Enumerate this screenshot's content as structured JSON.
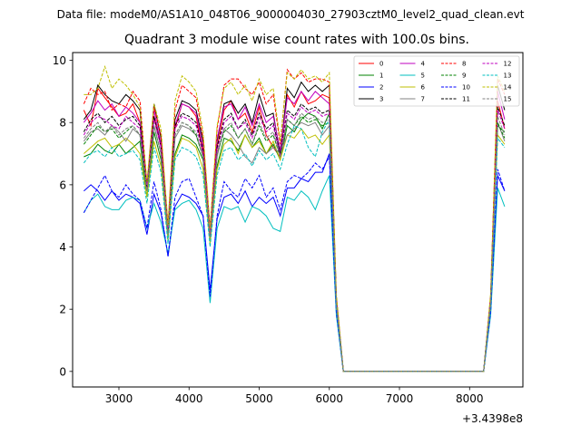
{
  "figure": {
    "suptitle": "Data file: modeM0/AS1A10_048T06_9000004030_27903cztM0_level2_quad_clean.evt",
    "offset_text": "+3.4398e8"
  },
  "chart_data": {
    "type": "line",
    "title": "Quadrant 3 module wise count rates with 100.0s bins.",
    "xlabel": "",
    "ylabel": "",
    "x_offset": 343980000,
    "xlim": [
      2340,
      8760
    ],
    "ylim": [
      -0.5,
      10.25
    ],
    "xticks": [
      3000,
      4000,
      5000,
      6000,
      7000,
      8000
    ],
    "yticks": [
      0,
      2,
      4,
      6,
      8,
      10
    ],
    "x": [
      2500,
      2600,
      2700,
      2800,
      2900,
      3000,
      3100,
      3200,
      3300,
      3400,
      3500,
      3600,
      3700,
      3800,
      3900,
      4000,
      4100,
      4200,
      4300,
      4400,
      4500,
      4600,
      4700,
      4800,
      4900,
      5000,
      5100,
      5200,
      5300,
      5400,
      5500,
      5600,
      5700,
      5800,
      5900,
      6000,
      6100,
      6200,
      6300,
      6400,
      6500,
      6600,
      6700,
      6800,
      6900,
      7000,
      7100,
      7200,
      7300,
      7400,
      7500,
      7600,
      7700,
      7800,
      7900,
      8000,
      8100,
      8200,
      8300,
      8400,
      8500
    ],
    "legend_position": "top-right",
    "series": [
      {
        "name": "0",
        "color": "#ff0000",
        "dash": "solid",
        "values": [
          8.4,
          7.9,
          9.1,
          8.8,
          8.5,
          8.2,
          8.3,
          8.6,
          8.0,
          5.9,
          8.2,
          7.3,
          4.6,
          7.8,
          8.6,
          8.5,
          8.2,
          7.0,
          4.5,
          7.2,
          8.4,
          8.7,
          8.1,
          8.3,
          7.7,
          8.5,
          7.6,
          7.2,
          6.9,
          8.9,
          8.5,
          9.0,
          8.6,
          8.7,
          8.9,
          8.8,
          2.3,
          0.0,
          0.0,
          0.0,
          0.0,
          0.0,
          0.0,
          0.0,
          0.0,
          0.0,
          0.0,
          0.0,
          0.0,
          0.0,
          0.0,
          0.0,
          0.0,
          0.0,
          0.0,
          0.0,
          0.0,
          0.0,
          2.3,
          8.7,
          7.8
        ]
      },
      {
        "name": "1",
        "color": "#008000",
        "dash": "solid",
        "values": [
          6.9,
          7.0,
          7.3,
          7.1,
          7.0,
          7.3,
          7.0,
          7.2,
          7.4,
          5.6,
          7.7,
          6.8,
          4.3,
          7.0,
          7.6,
          7.5,
          7.3,
          6.8,
          4.2,
          6.6,
          7.5,
          7.4,
          7.1,
          7.6,
          7.2,
          7.5,
          7.0,
          7.3,
          6.8,
          7.9,
          7.7,
          8.1,
          8.3,
          8.2,
          7.8,
          8.3,
          2.1,
          0.0,
          0.0,
          0.0,
          0.0,
          0.0,
          0.0,
          0.0,
          0.0,
          0.0,
          0.0,
          0.0,
          0.0,
          0.0,
          0.0,
          0.0,
          0.0,
          0.0,
          0.0,
          0.0,
          0.0,
          0.0,
          2.1,
          7.9,
          7.7
        ]
      },
      {
        "name": "2",
        "color": "#0000ff",
        "dash": "solid",
        "values": [
          5.8,
          6.0,
          5.8,
          5.5,
          5.8,
          5.5,
          5.7,
          5.6,
          5.4,
          4.4,
          5.7,
          5.1,
          3.7,
          5.3,
          5.7,
          5.6,
          5.4,
          5.0,
          2.6,
          4.9,
          5.6,
          5.7,
          5.4,
          5.8,
          5.3,
          5.6,
          5.4,
          5.6,
          5.0,
          5.9,
          5.9,
          6.2,
          6.1,
          6.4,
          6.4,
          7.0,
          1.9,
          0.0,
          0.0,
          0.0,
          0.0,
          0.0,
          0.0,
          0.0,
          0.0,
          0.0,
          0.0,
          0.0,
          0.0,
          0.0,
          0.0,
          0.0,
          0.0,
          0.0,
          0.0,
          0.0,
          0.0,
          0.0,
          1.9,
          6.3,
          5.8
        ]
      },
      {
        "name": "3",
        "color": "#000000",
        "dash": "solid",
        "values": [
          8.1,
          8.4,
          9.2,
          8.9,
          8.7,
          8.6,
          8.9,
          8.7,
          8.4,
          5.9,
          8.6,
          7.5,
          4.5,
          8.1,
          8.7,
          8.6,
          8.4,
          7.4,
          4.5,
          7.4,
          8.6,
          8.7,
          8.3,
          8.6,
          8.0,
          8.9,
          8.2,
          8.3,
          7.0,
          9.1,
          8.8,
          9.3,
          9.0,
          9.2,
          9.0,
          9.2,
          2.4,
          0.0,
          0.0,
          0.0,
          0.0,
          0.0,
          0.0,
          0.0,
          0.0,
          0.0,
          0.0,
          0.0,
          0.0,
          0.0,
          0.0,
          0.0,
          0.0,
          0.0,
          0.0,
          0.0,
          0.0,
          0.0,
          2.4,
          9.2,
          8.4
        ]
      },
      {
        "name": "4",
        "color": "#bf00bf",
        "dash": "solid",
        "values": [
          8.0,
          8.3,
          8.7,
          8.4,
          8.6,
          8.2,
          8.5,
          8.3,
          8.0,
          6.0,
          8.4,
          7.3,
          4.5,
          7.9,
          8.6,
          8.5,
          8.3,
          7.2,
          4.4,
          7.5,
          8.5,
          8.6,
          8.1,
          8.5,
          7.9,
          8.6,
          8.0,
          8.2,
          7.1,
          8.8,
          8.6,
          9.0,
          8.7,
          9.0,
          8.8,
          8.6,
          2.3,
          0.0,
          0.0,
          0.0,
          0.0,
          0.0,
          0.0,
          0.0,
          0.0,
          0.0,
          0.0,
          0.0,
          0.0,
          0.0,
          0.0,
          0.0,
          0.0,
          0.0,
          0.0,
          0.0,
          0.0,
          0.0,
          2.3,
          9.0,
          8.1
        ]
      },
      {
        "name": "5",
        "color": "#00bfbf",
        "dash": "solid",
        "values": [
          5.1,
          5.5,
          5.7,
          5.3,
          5.2,
          5.2,
          5.5,
          5.6,
          5.5,
          4.6,
          5.4,
          4.8,
          3.8,
          5.2,
          5.4,
          5.5,
          5.2,
          4.6,
          2.2,
          4.6,
          5.3,
          5.2,
          5.3,
          4.8,
          5.3,
          5.2,
          5.0,
          4.6,
          4.5,
          5.6,
          5.5,
          5.8,
          5.6,
          5.2,
          5.8,
          6.3,
          1.8,
          0.0,
          0.0,
          0.0,
          0.0,
          0.0,
          0.0,
          0.0,
          0.0,
          0.0,
          0.0,
          0.0,
          0.0,
          0.0,
          0.0,
          0.0,
          0.0,
          0.0,
          0.0,
          0.0,
          0.0,
          0.0,
          1.8,
          5.9,
          5.3
        ]
      },
      {
        "name": "6",
        "color": "#bfbf00",
        "dash": "solid",
        "values": [
          7.0,
          7.2,
          7.4,
          7.5,
          7.2,
          7.3,
          7.5,
          7.3,
          7.0,
          5.6,
          7.4,
          6.6,
          4.2,
          6.9,
          7.5,
          7.4,
          7.2,
          6.5,
          4.1,
          6.5,
          7.3,
          7.5,
          7.0,
          7.6,
          7.2,
          7.4,
          7.0,
          7.4,
          6.8,
          7.6,
          7.5,
          7.8,
          7.5,
          7.6,
          7.3,
          7.6,
          2.1,
          0.0,
          0.0,
          0.0,
          0.0,
          0.0,
          0.0,
          0.0,
          0.0,
          0.0,
          0.0,
          0.0,
          0.0,
          0.0,
          0.0,
          0.0,
          0.0,
          0.0,
          0.0,
          0.0,
          0.0,
          0.0,
          2.1,
          7.6,
          7.3
        ]
      },
      {
        "name": "7",
        "color": "#808080",
        "dash": "solid",
        "values": [
          7.4,
          7.7,
          7.8,
          7.6,
          7.9,
          7.7,
          7.4,
          7.8,
          7.6,
          5.8,
          7.9,
          7.0,
          4.4,
          7.5,
          7.9,
          7.8,
          7.6,
          6.9,
          4.3,
          6.9,
          7.8,
          7.6,
          7.3,
          6.9,
          6.7,
          7.2,
          7.0,
          7.2,
          7.0,
          7.6,
          7.8,
          8.0,
          7.9,
          8.0,
          7.6,
          7.9,
          2.2,
          0.0,
          0.0,
          0.0,
          0.0,
          0.0,
          0.0,
          0.0,
          0.0,
          0.0,
          0.0,
          0.0,
          0.0,
          0.0,
          0.0,
          0.0,
          0.0,
          0.0,
          0.0,
          0.0,
          0.0,
          0.0,
          2.2,
          8.0,
          7.4
        ]
      },
      {
        "name": "8",
        "color": "#ff0000",
        "dash": "dashed",
        "values": [
          8.6,
          9.1,
          8.9,
          9.0,
          8.4,
          8.6,
          8.5,
          9.0,
          8.7,
          6.0,
          8.5,
          7.6,
          4.7,
          8.4,
          9.2,
          9.0,
          8.8,
          7.5,
          4.6,
          7.8,
          9.2,
          9.4,
          9.4,
          9.1,
          8.9,
          9.3,
          8.6,
          8.9,
          7.3,
          9.7,
          9.4,
          9.6,
          9.3,
          9.4,
          9.4,
          9.3,
          2.4,
          0.0,
          0.0,
          0.0,
          0.0,
          0.0,
          0.0,
          0.0,
          0.0,
          0.0,
          0.0,
          0.0,
          0.0,
          0.0,
          0.0,
          0.0,
          0.0,
          0.0,
          0.0,
          0.0,
          0.0,
          0.0,
          2.4,
          9.4,
          8.9
        ]
      },
      {
        "name": "9",
        "color": "#008000",
        "dash": "dashed",
        "values": [
          7.3,
          7.6,
          7.9,
          7.7,
          7.8,
          7.5,
          7.7,
          7.9,
          7.6,
          5.8,
          7.9,
          7.0,
          4.4,
          7.6,
          8.0,
          7.9,
          7.6,
          6.9,
          4.3,
          7.0,
          7.7,
          7.9,
          7.5,
          7.8,
          7.3,
          7.9,
          7.4,
          7.6,
          6.9,
          8.1,
          7.9,
          8.2,
          8.0,
          8.1,
          7.9,
          8.0,
          2.2,
          0.0,
          0.0,
          0.0,
          0.0,
          0.0,
          0.0,
          0.0,
          0.0,
          0.0,
          0.0,
          0.0,
          0.0,
          0.0,
          0.0,
          0.0,
          0.0,
          0.0,
          0.0,
          0.0,
          0.0,
          0.0,
          2.2,
          8.0,
          7.5
        ]
      },
      {
        "name": "10",
        "color": "#0000ff",
        "dash": "dashed",
        "values": [
          5.1,
          5.5,
          5.9,
          6.3,
          5.8,
          5.6,
          6.0,
          5.7,
          5.5,
          4.6,
          6.1,
          5.2,
          3.7,
          5.6,
          6.1,
          6.2,
          5.6,
          5.0,
          2.4,
          5.0,
          6.1,
          5.8,
          5.6,
          6.2,
          5.9,
          6.3,
          5.6,
          5.9,
          5.2,
          6.1,
          6.3,
          6.2,
          6.4,
          6.7,
          6.5,
          6.9,
          1.9,
          0.0,
          0.0,
          0.0,
          0.0,
          0.0,
          0.0,
          0.0,
          0.0,
          0.0,
          0.0,
          0.0,
          0.0,
          0.0,
          0.0,
          0.0,
          0.0,
          0.0,
          0.0,
          0.0,
          0.0,
          0.0,
          1.9,
          6.5,
          5.8
        ]
      },
      {
        "name": "11",
        "color": "#000000",
        "dash": "dashed",
        "values": [
          7.7,
          8.1,
          8.3,
          8.0,
          8.2,
          7.9,
          8.1,
          8.2,
          7.9,
          5.9,
          8.2,
          7.2,
          4.5,
          7.9,
          8.3,
          8.2,
          8.0,
          7.1,
          4.4,
          7.2,
          8.1,
          8.3,
          7.8,
          8.1,
          7.6,
          8.3,
          7.8,
          8.0,
          7.0,
          8.4,
          8.2,
          8.6,
          8.4,
          8.5,
          8.3,
          8.4,
          2.3,
          0.0,
          0.0,
          0.0,
          0.0,
          0.0,
          0.0,
          0.0,
          0.0,
          0.0,
          0.0,
          0.0,
          0.0,
          0.0,
          0.0,
          0.0,
          0.0,
          0.0,
          0.0,
          0.0,
          0.0,
          0.0,
          2.3,
          8.5,
          7.9
        ]
      },
      {
        "name": "12",
        "color": "#bf00bf",
        "dash": "dashed",
        "values": [
          7.6,
          8.0,
          8.2,
          8.1,
          7.9,
          7.8,
          8.2,
          8.0,
          7.8,
          5.9,
          8.1,
          7.2,
          4.5,
          7.8,
          8.2,
          8.1,
          7.9,
          7.0,
          4.4,
          7.1,
          8.0,
          8.2,
          7.8,
          8.0,
          7.5,
          8.2,
          7.7,
          7.9,
          6.9,
          8.3,
          8.1,
          8.5,
          8.3,
          8.4,
          8.2,
          8.3,
          2.3,
          0.0,
          0.0,
          0.0,
          0.0,
          0.0,
          0.0,
          0.0,
          0.0,
          0.0,
          0.0,
          0.0,
          0.0,
          0.0,
          0.0,
          0.0,
          0.0,
          0.0,
          0.0,
          0.0,
          0.0,
          0.0,
          2.3,
          8.4,
          7.8
        ]
      },
      {
        "name": "13",
        "color": "#00bfbf",
        "dash": "dashed",
        "values": [
          6.7,
          7.0,
          7.1,
          6.9,
          7.2,
          6.9,
          7.0,
          7.1,
          6.8,
          5.4,
          7.2,
          6.4,
          4.1,
          6.8,
          7.2,
          7.1,
          6.9,
          6.3,
          4.0,
          6.3,
          7.1,
          7.2,
          6.8,
          7.0,
          6.6,
          7.1,
          6.8,
          7.0,
          6.5,
          7.3,
          7.9,
          7.8,
          7.2,
          6.9,
          7.7,
          8.1,
          2.1,
          0.0,
          0.0,
          0.0,
          0.0,
          0.0,
          0.0,
          0.0,
          0.0,
          0.0,
          0.0,
          0.0,
          0.0,
          0.0,
          0.0,
          0.0,
          0.0,
          0.0,
          0.0,
          0.0,
          0.0,
          0.0,
          2.1,
          7.5,
          7.2
        ]
      },
      {
        "name": "14",
        "color": "#bfbf00",
        "dash": "dashed",
        "values": [
          8.9,
          8.9,
          9.1,
          9.8,
          9.1,
          9.4,
          9.2,
          8.9,
          8.5,
          6.1,
          8.6,
          7.8,
          4.7,
          8.7,
          9.5,
          9.3,
          9.0,
          7.7,
          4.6,
          7.9,
          9.1,
          9.3,
          8.9,
          9.2,
          8.7,
          9.4,
          8.9,
          9.1,
          7.4,
          9.6,
          9.4,
          9.7,
          9.4,
          9.5,
          9.3,
          9.6,
          2.5,
          0.0,
          0.0,
          0.0,
          0.0,
          0.0,
          0.0,
          0.0,
          0.0,
          0.0,
          0.0,
          0.0,
          0.0,
          0.0,
          0.0,
          0.0,
          0.0,
          0.0,
          0.0,
          0.0,
          0.0,
          0.0,
          2.5,
          9.5,
          9.0
        ]
      },
      {
        "name": "15",
        "color": "#808080",
        "dash": "dashed",
        "values": [
          7.5,
          7.8,
          8.0,
          7.7,
          7.9,
          7.6,
          7.8,
          7.9,
          7.6,
          5.8,
          7.9,
          7.0,
          4.4,
          7.6,
          8.0,
          7.9,
          7.7,
          6.9,
          4.3,
          7.0,
          7.8,
          8.0,
          7.5,
          7.8,
          7.3,
          8.0,
          7.5,
          7.7,
          6.9,
          8.1,
          7.9,
          8.3,
          8.1,
          8.2,
          8.0,
          8.1,
          2.2,
          0.0,
          0.0,
          0.0,
          0.0,
          0.0,
          0.0,
          0.0,
          0.0,
          0.0,
          0.0,
          0.0,
          0.0,
          0.0,
          0.0,
          0.0,
          0.0,
          0.0,
          0.0,
          0.0,
          0.0,
          0.0,
          2.2,
          8.2,
          7.6
        ]
      }
    ]
  }
}
